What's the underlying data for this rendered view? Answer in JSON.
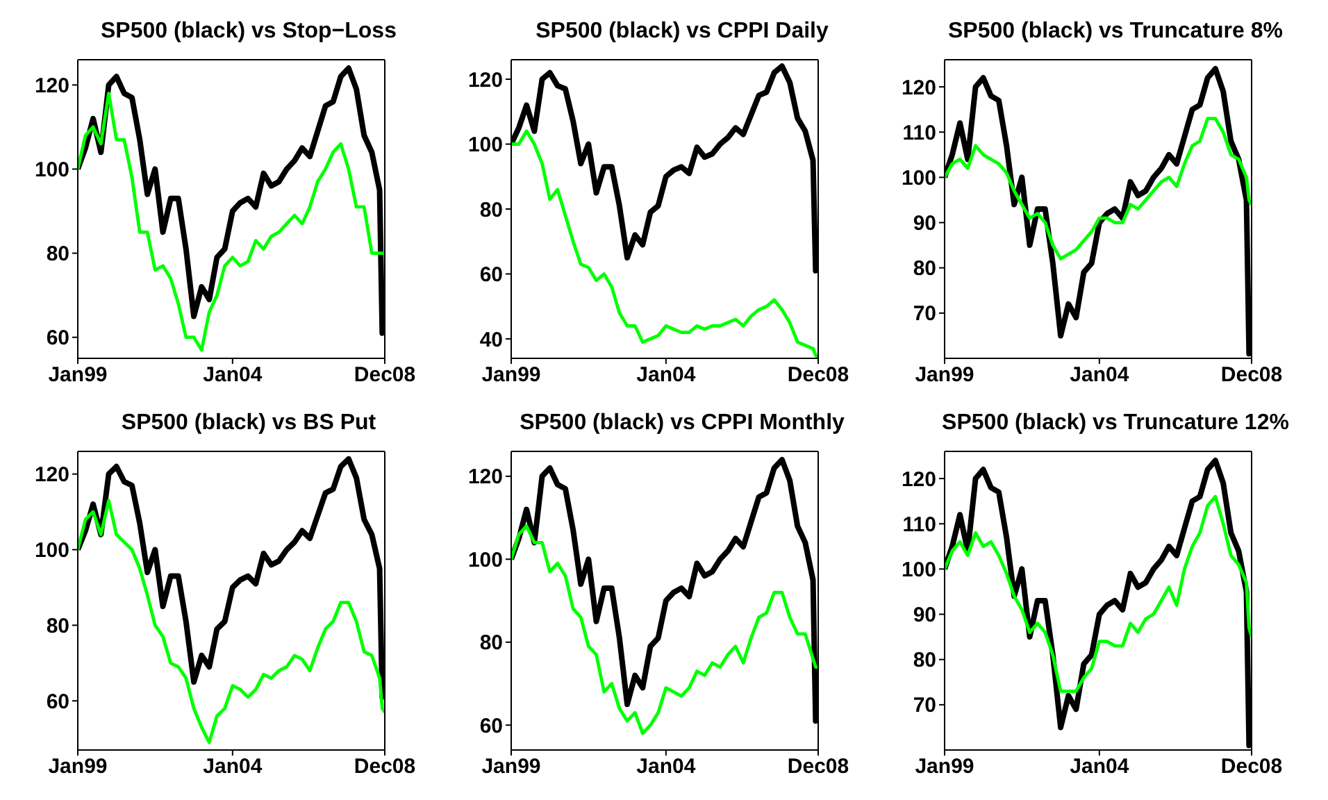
{
  "chart_data": [
    {
      "type": "line",
      "title": "SP500 (black) vs Stop−Loss",
      "x": [
        "1999-01",
        "1999-04",
        "1999-07",
        "1999-10",
        "2000-01",
        "2000-04",
        "2000-07",
        "2000-10",
        "2001-01",
        "2001-04",
        "2001-07",
        "2001-10",
        "2002-01",
        "2002-04",
        "2002-07",
        "2002-10",
        "2003-01",
        "2003-04",
        "2003-07",
        "2003-10",
        "2004-01",
        "2004-04",
        "2004-07",
        "2004-10",
        "2005-01",
        "2005-04",
        "2005-07",
        "2005-10",
        "2006-01",
        "2006-04",
        "2006-07",
        "2006-10",
        "2007-01",
        "2007-04",
        "2007-07",
        "2007-10",
        "2008-01",
        "2008-04",
        "2008-07",
        "2008-10",
        "2008-11",
        "2008-12"
      ],
      "xlim": [
        "1999-01",
        "2008-12"
      ],
      "xticks": [
        {
          "value": "1999-01",
          "label": "Jan99"
        },
        {
          "value": "2004-01",
          "label": "Jan04"
        },
        {
          "value": "2008-12",
          "label": "Dec08"
        }
      ],
      "ylim": [
        55,
        126
      ],
      "yticks": [
        60,
        80,
        100,
        120
      ],
      "series": [
        {
          "color": "#000000",
          "values": [
            100,
            105,
            112,
            104,
            120,
            122,
            118,
            117,
            107,
            94,
            100,
            85,
            93,
            93,
            81,
            65,
            72,
            69,
            79,
            81,
            90,
            92,
            93,
            91,
            99,
            96,
            97,
            100,
            102,
            105,
            103,
            109,
            115,
            116,
            122,
            124,
            119,
            108,
            104,
            95,
            61,
            70
          ]
        },
        {
          "color": "#00ff00",
          "values": [
            100,
            108,
            110,
            106,
            118,
            107,
            107,
            98,
            85,
            85,
            76,
            77,
            74,
            68,
            60,
            60,
            57,
            66,
            70,
            77,
            79,
            77,
            78,
            83,
            81,
            84,
            85,
            87,
            89,
            87,
            91,
            97,
            100,
            104,
            106,
            100,
            91,
            91,
            80,
            80,
            80,
            80
          ]
        }
      ]
    },
    {
      "type": "line",
      "title": "SP500 (black) vs CPPI Daily",
      "x": [
        "1999-01",
        "1999-04",
        "1999-07",
        "1999-10",
        "2000-01",
        "2000-04",
        "2000-07",
        "2000-10",
        "2001-01",
        "2001-04",
        "2001-07",
        "2001-10",
        "2002-01",
        "2002-04",
        "2002-07",
        "2002-10",
        "2003-01",
        "2003-04",
        "2003-07",
        "2003-10",
        "2004-01",
        "2004-04",
        "2004-07",
        "2004-10",
        "2005-01",
        "2005-04",
        "2005-07",
        "2005-10",
        "2006-01",
        "2006-04",
        "2006-07",
        "2006-10",
        "2007-01",
        "2007-04",
        "2007-07",
        "2007-10",
        "2008-01",
        "2008-04",
        "2008-07",
        "2008-10",
        "2008-11",
        "2008-12"
      ],
      "xlim": [
        "1999-01",
        "2008-12"
      ],
      "xticks": [
        {
          "value": "1999-01",
          "label": "Jan99"
        },
        {
          "value": "2004-01",
          "label": "Jan04"
        },
        {
          "value": "2008-12",
          "label": "Dec08"
        }
      ],
      "ylim": [
        34,
        126
      ],
      "yticks": [
        40,
        60,
        80,
        100,
        120
      ],
      "series": [
        {
          "color": "#000000",
          "values": [
            100,
            105,
            112,
            104,
            120,
            122,
            118,
            117,
            107,
            94,
            100,
            85,
            93,
            93,
            81,
            65,
            72,
            69,
            79,
            81,
            90,
            92,
            93,
            91,
            99,
            96,
            97,
            100,
            102,
            105,
            103,
            109,
            115,
            116,
            122,
            124,
            119,
            108,
            104,
            95,
            61,
            70
          ]
        },
        {
          "color": "#00ff00",
          "values": [
            100,
            100,
            104,
            100,
            94,
            83,
            86,
            78,
            70,
            63,
            62,
            58,
            60,
            56,
            48,
            44,
            44,
            39,
            40,
            41,
            44,
            43,
            42,
            42,
            44,
            43,
            44,
            44,
            45,
            46,
            44,
            47,
            49,
            50,
            52,
            49,
            45,
            39,
            38,
            37,
            35,
            34
          ]
        }
      ]
    },
    {
      "type": "line",
      "title": "SP500 (black) vs Truncature 8%",
      "x": [
        "1999-01",
        "1999-04",
        "1999-07",
        "1999-10",
        "2000-01",
        "2000-04",
        "2000-07",
        "2000-10",
        "2001-01",
        "2001-04",
        "2001-07",
        "2001-10",
        "2002-01",
        "2002-04",
        "2002-07",
        "2002-10",
        "2003-01",
        "2003-04",
        "2003-07",
        "2003-10",
        "2004-01",
        "2004-04",
        "2004-07",
        "2004-10",
        "2005-01",
        "2005-04",
        "2005-07",
        "2005-10",
        "2006-01",
        "2006-04",
        "2006-07",
        "2006-10",
        "2007-01",
        "2007-04",
        "2007-07",
        "2007-10",
        "2008-01",
        "2008-04",
        "2008-07",
        "2008-10",
        "2008-11",
        "2008-12"
      ],
      "xlim": [
        "1999-01",
        "2008-12"
      ],
      "xticks": [
        {
          "value": "1999-01",
          "label": "Jan99"
        },
        {
          "value": "2004-01",
          "label": "Jan04"
        },
        {
          "value": "2008-12",
          "label": "Dec08"
        }
      ],
      "ylim": [
        60,
        126
      ],
      "yticks": [
        70,
        80,
        90,
        100,
        110,
        120
      ],
      "series": [
        {
          "color": "#000000",
          "values": [
            100,
            105,
            112,
            104,
            120,
            122,
            118,
            117,
            107,
            94,
            100,
            85,
            93,
            93,
            81,
            65,
            72,
            69,
            79,
            81,
            90,
            92,
            93,
            91,
            99,
            96,
            97,
            100,
            102,
            105,
            103,
            109,
            115,
            116,
            122,
            124,
            119,
            108,
            104,
            95,
            61,
            70
          ]
        },
        {
          "color": "#00ff00",
          "values": [
            100,
            103,
            104,
            102,
            107,
            105,
            104,
            103,
            101,
            97,
            94,
            91,
            92,
            90,
            85,
            82,
            83,
            84,
            86,
            88,
            91,
            91,
            90,
            90,
            94,
            93,
            95,
            97,
            99,
            100,
            98,
            103,
            107,
            108,
            113,
            113,
            110,
            105,
            104,
            100,
            95,
            94
          ]
        }
      ]
    },
    {
      "type": "line",
      "title": "SP500 (black) vs BS Put",
      "x": [
        "1999-01",
        "1999-04",
        "1999-07",
        "1999-10",
        "2000-01",
        "2000-04",
        "2000-07",
        "2000-10",
        "2001-01",
        "2001-04",
        "2001-07",
        "2001-10",
        "2002-01",
        "2002-04",
        "2002-07",
        "2002-10",
        "2003-01",
        "2003-04",
        "2003-07",
        "2003-10",
        "2004-01",
        "2004-04",
        "2004-07",
        "2004-10",
        "2005-01",
        "2005-04",
        "2005-07",
        "2005-10",
        "2006-01",
        "2006-04",
        "2006-07",
        "2006-10",
        "2007-01",
        "2007-04",
        "2007-07",
        "2007-10",
        "2008-01",
        "2008-04",
        "2008-07",
        "2008-10",
        "2008-11",
        "2008-12"
      ],
      "xlim": [
        "1999-01",
        "2008-12"
      ],
      "xticks": [
        {
          "value": "1999-01",
          "label": "Jan99"
        },
        {
          "value": "2004-01",
          "label": "Jan04"
        },
        {
          "value": "2008-12",
          "label": "Dec08"
        }
      ],
      "ylim": [
        47,
        126
      ],
      "yticks": [
        60,
        80,
        100,
        120
      ],
      "series": [
        {
          "color": "#000000",
          "values": [
            100,
            105,
            112,
            104,
            120,
            122,
            118,
            117,
            107,
            94,
            100,
            85,
            93,
            93,
            81,
            65,
            72,
            69,
            79,
            81,
            90,
            92,
            93,
            91,
            99,
            96,
            97,
            100,
            102,
            105,
            103,
            109,
            115,
            116,
            122,
            124,
            119,
            108,
            104,
            95,
            61,
            70
          ]
        },
        {
          "color": "#00ff00",
          "values": [
            100,
            108,
            110,
            104,
            113,
            104,
            102,
            100,
            95,
            88,
            80,
            77,
            70,
            69,
            66,
            58,
            53,
            49,
            56,
            58,
            64,
            63,
            61,
            63,
            67,
            66,
            68,
            69,
            72,
            71,
            68,
            74,
            79,
            81,
            86,
            86,
            81,
            73,
            72,
            66,
            58,
            57
          ]
        }
      ]
    },
    {
      "type": "line",
      "title": "SP500 (black) vs CPPI Monthly",
      "x": [
        "1999-01",
        "1999-04",
        "1999-07",
        "1999-10",
        "2000-01",
        "2000-04",
        "2000-07",
        "2000-10",
        "2001-01",
        "2001-04",
        "2001-07",
        "2001-10",
        "2002-01",
        "2002-04",
        "2002-07",
        "2002-10",
        "2003-01",
        "2003-04",
        "2003-07",
        "2003-10",
        "2004-01",
        "2004-04",
        "2004-07",
        "2004-10",
        "2005-01",
        "2005-04",
        "2005-07",
        "2005-10",
        "2006-01",
        "2006-04",
        "2006-07",
        "2006-10",
        "2007-01",
        "2007-04",
        "2007-07",
        "2007-10",
        "2008-01",
        "2008-04",
        "2008-07",
        "2008-10",
        "2008-11",
        "2008-12"
      ],
      "xlim": [
        "1999-01",
        "2008-12"
      ],
      "xticks": [
        {
          "value": "1999-01",
          "label": "Jan99"
        },
        {
          "value": "2004-01",
          "label": "Jan04"
        },
        {
          "value": "2008-12",
          "label": "Dec08"
        }
      ],
      "ylim": [
        54,
        126
      ],
      "yticks": [
        60,
        80,
        100,
        120
      ],
      "series": [
        {
          "color": "#000000",
          "values": [
            100,
            105,
            112,
            104,
            120,
            122,
            118,
            117,
            107,
            94,
            100,
            85,
            93,
            93,
            81,
            65,
            72,
            69,
            79,
            81,
            90,
            92,
            93,
            91,
            99,
            96,
            97,
            100,
            102,
            105,
            103,
            109,
            115,
            116,
            122,
            124,
            119,
            108,
            104,
            95,
            61,
            70
          ]
        },
        {
          "color": "#00ff00",
          "values": [
            100,
            106,
            108,
            104,
            104,
            97,
            99,
            96,
            88,
            86,
            79,
            77,
            68,
            70,
            64,
            61,
            63,
            58,
            60,
            63,
            69,
            68,
            67,
            69,
            73,
            72,
            75,
            74,
            77,
            79,
            75,
            81,
            86,
            87,
            92,
            92,
            86,
            82,
            82,
            76,
            74,
            74
          ]
        }
      ]
    },
    {
      "type": "line",
      "title": "SP500 (black) vs Truncature 12%",
      "x": [
        "1999-01",
        "1999-04",
        "1999-07",
        "1999-10",
        "2000-01",
        "2000-04",
        "2000-07",
        "2000-10",
        "2001-01",
        "2001-04",
        "2001-07",
        "2001-10",
        "2002-01",
        "2002-04",
        "2002-07",
        "2002-10",
        "2003-01",
        "2003-04",
        "2003-07",
        "2003-10",
        "2004-01",
        "2004-04",
        "2004-07",
        "2004-10",
        "2005-01",
        "2005-04",
        "2005-07",
        "2005-10",
        "2006-01",
        "2006-04",
        "2006-07",
        "2006-10",
        "2007-01",
        "2007-04",
        "2007-07",
        "2007-10",
        "2008-01",
        "2008-04",
        "2008-07",
        "2008-10",
        "2008-11",
        "2008-12"
      ],
      "xlim": [
        "1999-01",
        "2008-12"
      ],
      "xticks": [
        {
          "value": "1999-01",
          "label": "Jan99"
        },
        {
          "value": "2004-01",
          "label": "Jan04"
        },
        {
          "value": "2008-12",
          "label": "Dec08"
        }
      ],
      "ylim": [
        60,
        126
      ],
      "yticks": [
        70,
        80,
        90,
        100,
        110,
        120
      ],
      "series": [
        {
          "color": "#000000",
          "values": [
            100,
            105,
            112,
            104,
            120,
            122,
            118,
            117,
            107,
            94,
            100,
            85,
            93,
            93,
            81,
            65,
            72,
            69,
            79,
            81,
            90,
            92,
            93,
            91,
            99,
            96,
            97,
            100,
            102,
            105,
            103,
            109,
            115,
            116,
            122,
            124,
            119,
            108,
            104,
            95,
            61,
            70
          ]
        },
        {
          "color": "#00ff00",
          "values": [
            100,
            104,
            106,
            103,
            108,
            105,
            106,
            103,
            99,
            94,
            91,
            86,
            88,
            86,
            81,
            73,
            73,
            73,
            76,
            78,
            84,
            84,
            83,
            83,
            88,
            86,
            89,
            90,
            93,
            96,
            92,
            100,
            105,
            108,
            114,
            116,
            110,
            103,
            101,
            97,
            87,
            85
          ]
        }
      ]
    }
  ]
}
